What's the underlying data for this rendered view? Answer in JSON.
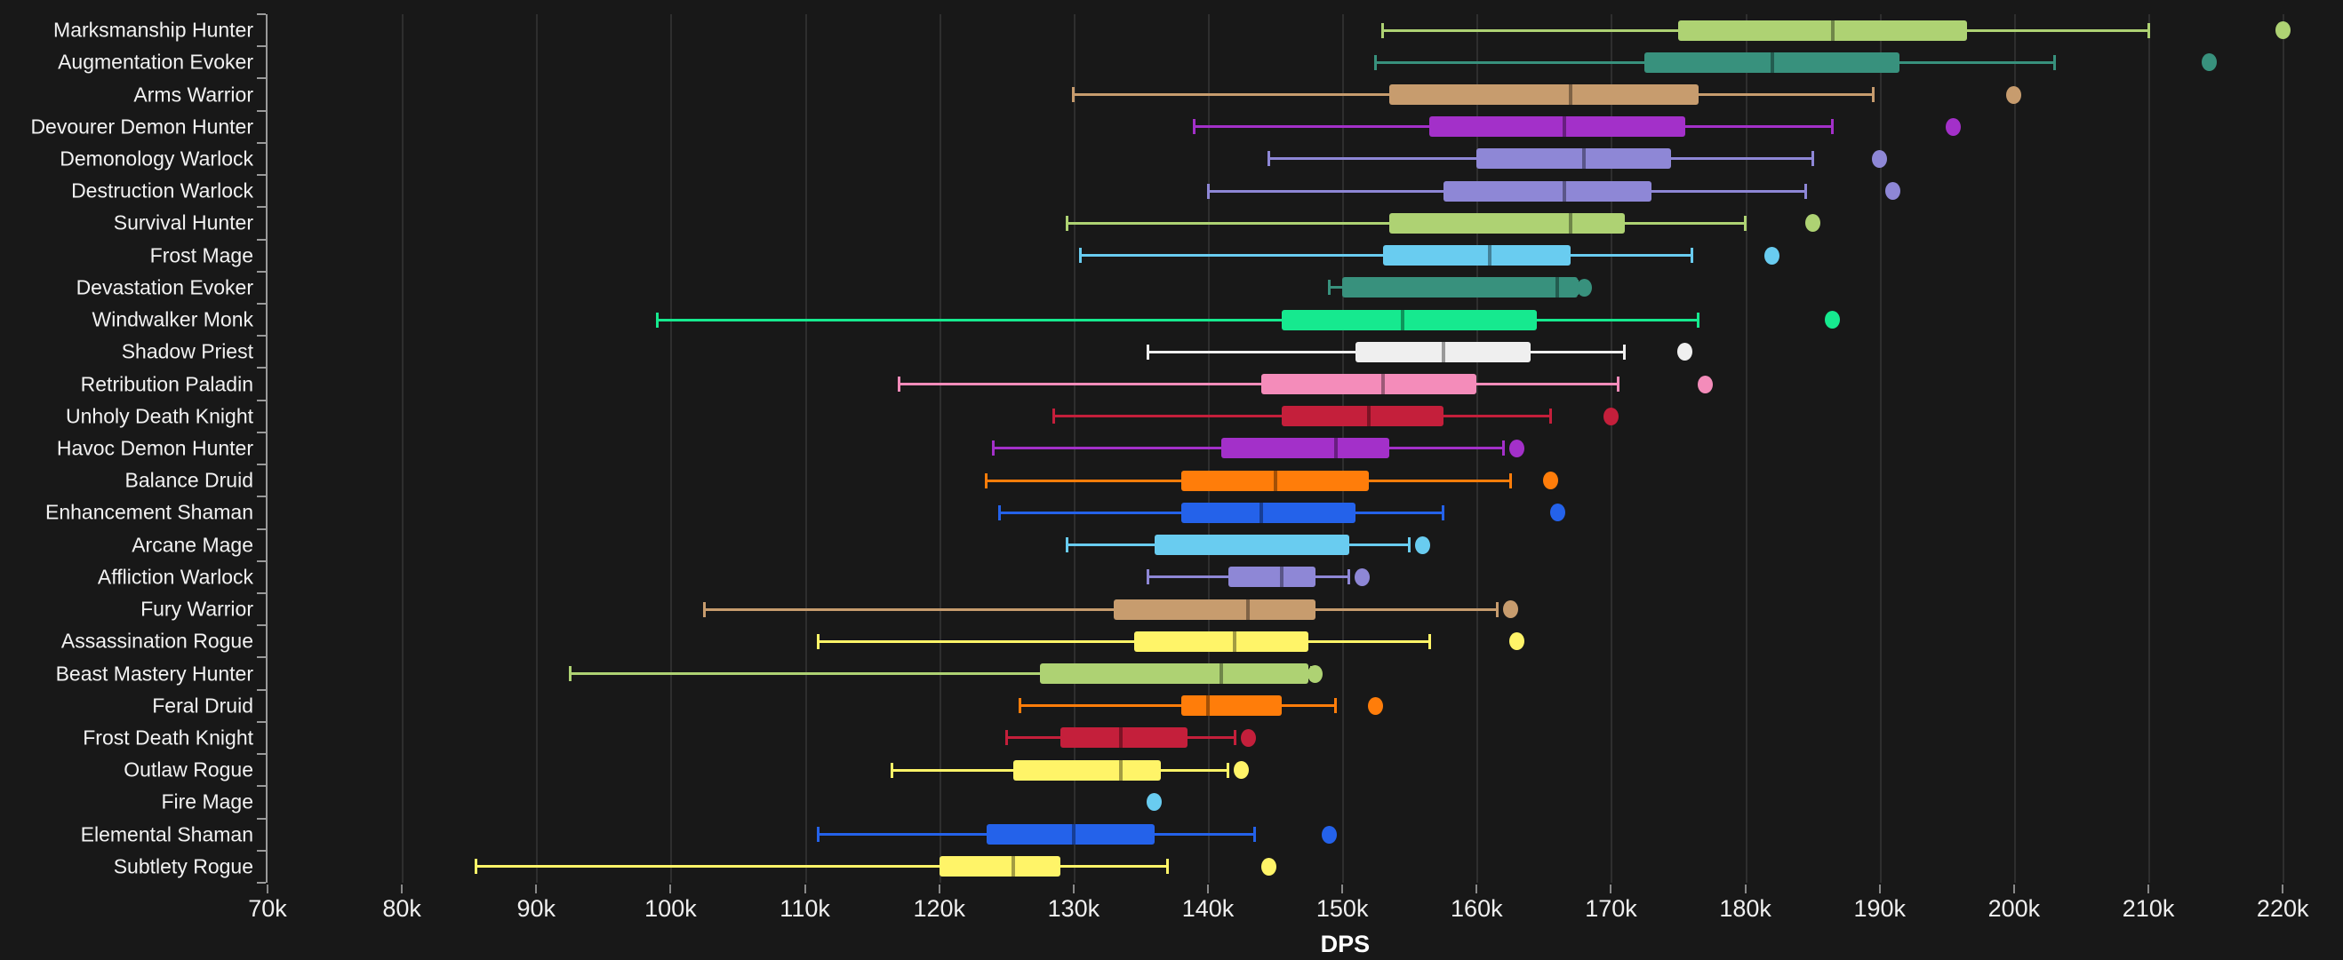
{
  "styles": {
    "background": "#181818",
    "grid_color": "#2e2e2e",
    "axis_color": "#9a9a9a",
    "tick_color": "#8a8a8a",
    "text_color": "#f2f2f2",
    "median_overlay": "rgba(0,0,0,0.36)"
  },
  "chart_data": {
    "type": "boxplot",
    "orientation": "horizontal",
    "title": "",
    "xlabel": "DPS",
    "ylabel": "",
    "value_unit": "k (thousands of DPS)",
    "xlim": [
      70,
      222.5
    ],
    "grid": true,
    "x_tick_values": [
      70,
      80,
      90,
      100,
      110,
      120,
      130,
      140,
      150,
      160,
      170,
      180,
      190,
      200,
      210,
      220
    ],
    "x_tick_labels": [
      "70k",
      "80k",
      "90k",
      "100k",
      "110k",
      "120k",
      "130k",
      "140k",
      "150k",
      "160k",
      "170k",
      "180k",
      "190k",
      "200k",
      "210k",
      "220k"
    ],
    "series": [
      {
        "label": "Marksmanship Hunter",
        "color": "#AED273",
        "min": 153,
        "q1": 175,
        "median": 186.5,
        "q3": 196.5,
        "max": 210,
        "outliers": [
          220
        ]
      },
      {
        "label": "Augmentation Evoker",
        "color": "#38917D",
        "min": 152.5,
        "q1": 172.5,
        "median": 182,
        "q3": 191.5,
        "max": 203,
        "outliers": [
          214.5
        ]
      },
      {
        "label": "Arms Warrior",
        "color": "#C79C6E",
        "min": 130,
        "q1": 153.5,
        "median": 167,
        "q3": 176.5,
        "max": 189.5,
        "outliers": [
          200
        ]
      },
      {
        "label": "Devourer Demon Hunter",
        "color": "#A330C9",
        "min": 139,
        "q1": 156.5,
        "median": 166.5,
        "q3": 175.5,
        "max": 186.5,
        "outliers": [
          195.5
        ]
      },
      {
        "label": "Demonology Warlock",
        "color": "#8E87D6",
        "min": 144.5,
        "q1": 160,
        "median": 168,
        "q3": 174.5,
        "max": 185,
        "outliers": [
          190
        ]
      },
      {
        "label": "Destruction Warlock",
        "color": "#8E87D6",
        "min": 140,
        "q1": 157.5,
        "median": 166.5,
        "q3": 173,
        "max": 184.5,
        "outliers": [
          191
        ]
      },
      {
        "label": "Survival Hunter",
        "color": "#AED273",
        "min": 129.5,
        "q1": 153.5,
        "median": 167,
        "q3": 171,
        "max": 180,
        "outliers": [
          185
        ]
      },
      {
        "label": "Frost Mage",
        "color": "#69CCF0",
        "min": 130.5,
        "q1": 153,
        "median": 161,
        "q3": 167,
        "max": 176,
        "outliers": [
          182
        ]
      },
      {
        "label": "Devastation Evoker",
        "color": "#38917D",
        "min": 149,
        "q1": 150,
        "median": 166,
        "q3": 167.5,
        "max": 167.5,
        "outliers": [
          168
        ]
      },
      {
        "label": "Windwalker Monk",
        "color": "#16E98F",
        "min": 99,
        "q1": 145.5,
        "median": 154.5,
        "q3": 164.5,
        "max": 176.5,
        "outliers": [
          186.5
        ]
      },
      {
        "label": "Shadow Priest",
        "color": "#EFEFEF",
        "min": 135.5,
        "q1": 151,
        "median": 157.5,
        "q3": 164,
        "max": 171,
        "outliers": [
          175.5
        ]
      },
      {
        "label": "Retribution Paladin",
        "color": "#F48CBA",
        "min": 117,
        "q1": 144,
        "median": 153,
        "q3": 160,
        "max": 170.5,
        "outliers": [
          177
        ]
      },
      {
        "label": "Unholy Death Knight",
        "color": "#C41F3B",
        "min": 128.5,
        "q1": 145.5,
        "median": 152,
        "q3": 157.5,
        "max": 165.5,
        "outliers": [
          170
        ]
      },
      {
        "label": "Havoc Demon Hunter",
        "color": "#A330C9",
        "min": 124,
        "q1": 141,
        "median": 149.5,
        "q3": 153.5,
        "max": 162,
        "outliers": [
          163
        ]
      },
      {
        "label": "Balance Druid",
        "color": "#FF7D0A",
        "min": 123.5,
        "q1": 138,
        "median": 145,
        "q3": 152,
        "max": 162.5,
        "outliers": [
          165.5
        ]
      },
      {
        "label": "Enhancement Shaman",
        "color": "#2462EA",
        "min": 124.5,
        "q1": 138,
        "median": 144,
        "q3": 151,
        "max": 157.5,
        "outliers": [
          166
        ]
      },
      {
        "label": "Arcane Mage",
        "color": "#69CCF0",
        "min": 129.5,
        "q1": 136,
        "median": null,
        "q3": 150.5,
        "max": 155,
        "outliers": [
          156
        ]
      },
      {
        "label": "Affliction Warlock",
        "color": "#8E87D6",
        "min": 135.5,
        "q1": 141.5,
        "median": 145.5,
        "q3": 148,
        "max": 150.5,
        "outliers": [
          151.5
        ]
      },
      {
        "label": "Fury Warrior",
        "color": "#C79C6E",
        "min": 102.5,
        "q1": 133,
        "median": 143,
        "q3": 148,
        "max": 161.5,
        "outliers": [
          162.5
        ]
      },
      {
        "label": "Assassination Rogue",
        "color": "#FFF468",
        "min": 111,
        "q1": 134.5,
        "median": 142,
        "q3": 147.5,
        "max": 156.5,
        "outliers": [
          163
        ]
      },
      {
        "label": "Beast Mastery Hunter",
        "color": "#AED273",
        "min": 92.5,
        "q1": 127.5,
        "median": 141,
        "q3": 147.5,
        "max": 147.7,
        "outliers": [
          148
        ]
      },
      {
        "label": "Feral Druid",
        "color": "#FF7D0A",
        "min": 126,
        "q1": 138,
        "median": 140,
        "q3": 145.5,
        "max": 149.5,
        "outliers": [
          152.5
        ]
      },
      {
        "label": "Frost Death Knight",
        "color": "#C41F3B",
        "min": 125,
        "q1": 129,
        "median": 133.5,
        "q3": 138.5,
        "max": 142,
        "outliers": [
          143
        ]
      },
      {
        "label": "Outlaw Rogue",
        "color": "#FFF468",
        "min": 116.5,
        "q1": 125.5,
        "median": 133.5,
        "q3": 136.5,
        "max": 141.5,
        "outliers": [
          142.5
        ]
      },
      {
        "label": "Fire Mage",
        "color": "#69CCF0",
        "min": null,
        "q1": null,
        "median": null,
        "q3": null,
        "max": null,
        "outliers": [
          136
        ]
      },
      {
        "label": "Elemental Shaman",
        "color": "#2462EA",
        "min": 111,
        "q1": 123.5,
        "median": 130,
        "q3": 136,
        "max": 143.5,
        "outliers": [
          149
        ]
      },
      {
        "label": "Subtlety Rogue",
        "color": "#FFF468",
        "min": 85.5,
        "q1": 120,
        "median": 125.5,
        "q3": 129,
        "max": 137,
        "outliers": [
          144.5
        ]
      }
    ]
  }
}
